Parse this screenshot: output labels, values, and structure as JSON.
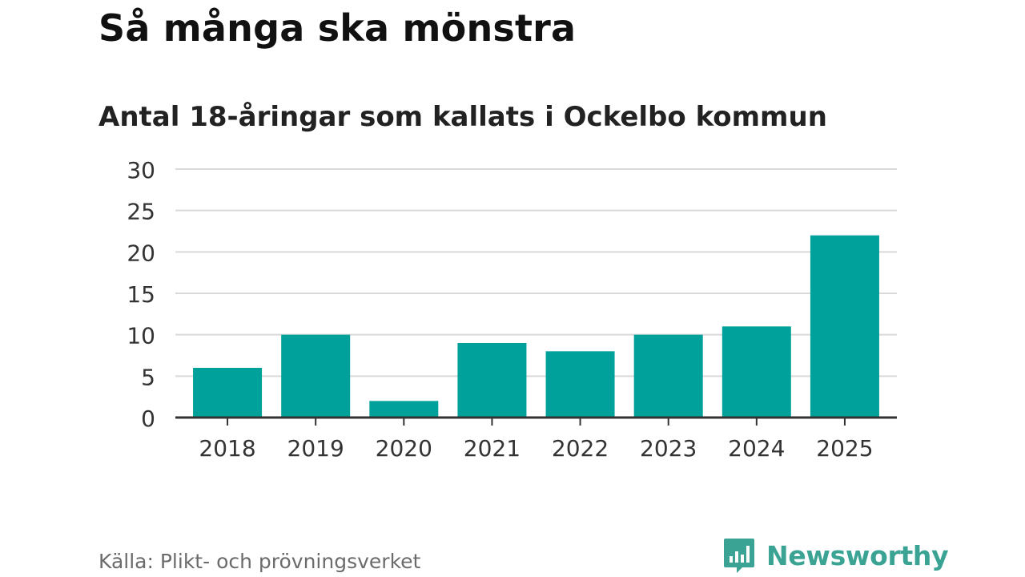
{
  "header": {
    "title": "Så många ska mönstra",
    "subtitle": "Antal 18-åringar som kallats i Ockelbo kommun"
  },
  "footer": {
    "source": "Källa: Plikt- och prövningsverket",
    "brand": "Newsworthy",
    "brand_icon": "newsworthy-logo-icon"
  },
  "colors": {
    "bar": "#00a19a",
    "grid": "#d9d9d9",
    "axis": "#333333",
    "brand": "#3aa394"
  },
  "chart_data": {
    "type": "bar",
    "categories": [
      "2018",
      "2019",
      "2020",
      "2021",
      "2022",
      "2023",
      "2024",
      "2025"
    ],
    "values": [
      6,
      10,
      2,
      9,
      8,
      10,
      11,
      22
    ],
    "ylim": [
      0,
      30
    ],
    "yticks": [
      "0",
      "5",
      "10",
      "15",
      "20",
      "25",
      "30"
    ],
    "xlabel": "",
    "ylabel": "",
    "grid": true
  }
}
